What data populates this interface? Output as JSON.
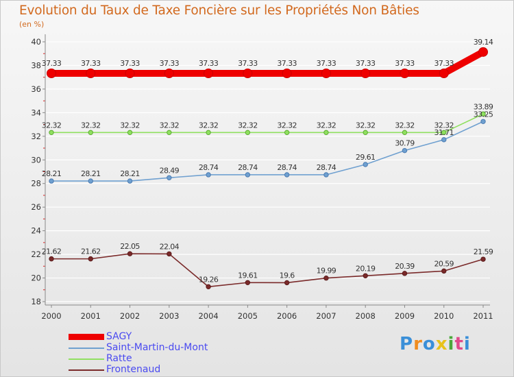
{
  "chart_data": {
    "type": "line",
    "title": "Evolution du Taux de Taxe Foncière sur les Propriétés Non Bâties",
    "ylabel": "(en %)",
    "xlabel": "",
    "ylim": [
      18,
      40
    ],
    "yticks": [
      18,
      20,
      22,
      24,
      26,
      28,
      30,
      32,
      34,
      36,
      38,
      40
    ],
    "categories": [
      "2000",
      "2001",
      "2002",
      "2003",
      "2004",
      "2005",
      "2006",
      "2007",
      "2008",
      "2009",
      "2010",
      "2011"
    ],
    "grid": true,
    "series": [
      {
        "name": "SAGY",
        "color": "#ee0000",
        "values": [
          37.33,
          37.33,
          37.33,
          37.33,
          37.33,
          37.33,
          37.33,
          37.33,
          37.33,
          37.33,
          37.33,
          39.14
        ],
        "labels": [
          "37.33",
          "37.33",
          "37.33",
          "37.33",
          "37.33",
          "37.33",
          "37.33",
          "37.33",
          "37.33",
          "37.33",
          "37.33",
          "39.14"
        ]
      },
      {
        "name": "Saint-Martin-du-Mont",
        "color": "#6fa0d0",
        "values": [
          28.21,
          28.21,
          28.21,
          28.49,
          28.74,
          28.74,
          28.74,
          28.74,
          29.61,
          30.79,
          31.71,
          33.25
        ],
        "labels": [
          "28.21",
          "28.21",
          "28.21",
          "28.49",
          "28.74",
          "28.74",
          "28.74",
          "28.74",
          "29.61",
          "30.79",
          "31.71",
          "33.25"
        ]
      },
      {
        "name": "Ratte",
        "color": "#90e060",
        "values": [
          32.32,
          32.32,
          32.32,
          32.32,
          32.32,
          32.32,
          32.32,
          32.32,
          32.32,
          32.32,
          32.32,
          33.89
        ],
        "labels": [
          "32.32",
          "32.32",
          "32.32",
          "32.32",
          "32.32",
          "32.32",
          "32.32",
          "32.32",
          "32.32",
          "32.32",
          "32.32",
          "33.89"
        ]
      },
      {
        "name": "Frontenaud",
        "color": "#7a2a2a",
        "values": [
          21.62,
          21.62,
          22.05,
          22.04,
          19.26,
          19.61,
          19.6,
          19.99,
          20.19,
          20.39,
          20.59,
          21.59
        ],
        "labels": [
          "21.62",
          "21.62",
          "22.05",
          "22.04",
          "19.26",
          "19.61",
          "19.6",
          "19.99",
          "20.19",
          "20.39",
          "20.59",
          "21.59"
        ]
      }
    ],
    "legend_position": "bottom-left"
  },
  "logo": {
    "text": "Proxiti",
    "letters": [
      "P",
      "r",
      "o",
      "x",
      "i",
      "t",
      "i"
    ],
    "colors": [
      "#3a8fd8",
      "#f08c1e",
      "#3a8fd8",
      "#e8c21a",
      "#4aa83a",
      "#e04a8a",
      "#3a8fd8"
    ]
  },
  "colors": {
    "title": "#d2691e",
    "axis_text": "#333333",
    "legend_text": "#4a4af0"
  }
}
